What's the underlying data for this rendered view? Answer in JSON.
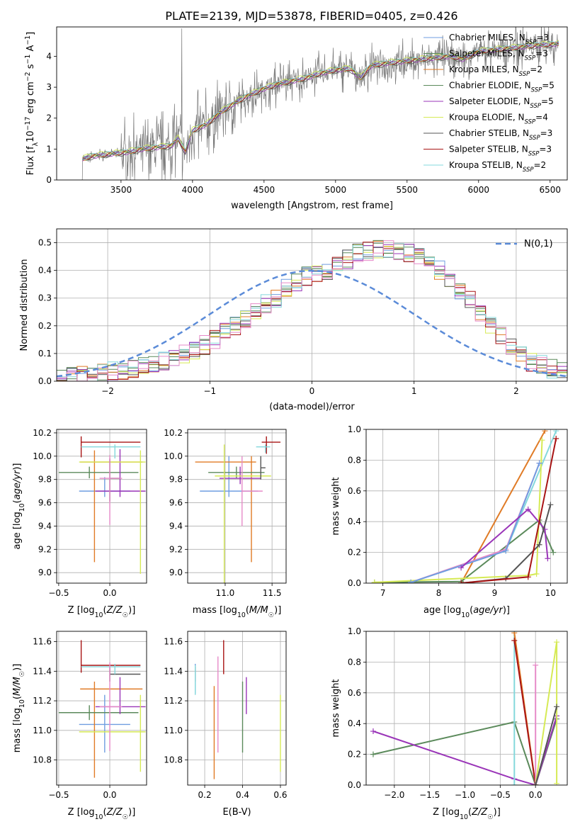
{
  "title": "PLATE=2139, MJD=53878, FIBERID=0405, z=0.426",
  "colors": {
    "blue": "#6f9ee0",
    "orange": "#e07b26",
    "green": "#5b8a5b",
    "purple": "#9a35b8",
    "yellow": "#d6ea55",
    "gray": "#555555",
    "red": "#a81414",
    "cyan": "#84d8dc",
    "pink": "#e68ac8",
    "dashed": "#5b8bd8"
  },
  "legend_spectrum": [
    {
      "name": "Chabrier MILES",
      "nssp": "3",
      "color": "#6f9ee0"
    },
    {
      "name": "Salpeter MILES",
      "nssp": "3",
      "color": "#5b8a5b"
    },
    {
      "name": "Kroupa MILES",
      "nssp": "2",
      "color": "#e07b26"
    },
    {
      "name": "Chabrier ELODIE",
      "nssp": "5",
      "color": "#5b8a5b"
    },
    {
      "name": "Salpeter ELODIE",
      "nssp": "5",
      "color": "#9a35b8"
    },
    {
      "name": "Kroupa ELODIE",
      "nssp": "4",
      "color": "#d6ea55"
    },
    {
      "name": "Chabrier STELIB",
      "nssp": "3",
      "color": "#555555"
    },
    {
      "name": "Salpeter STELIB",
      "nssp": "3",
      "color": "#a81414"
    },
    {
      "name": "Kroupa STELIB",
      "nssp": "2",
      "color": "#84d8dc"
    }
  ],
  "chart_data": [
    {
      "id": "spectrum",
      "type": "line",
      "xlabel": "wavelength [Angstrom, rest frame]",
      "ylabel_parts": [
        "Flux [f",
        "λ",
        "10",
        "−17",
        " erg cm",
        "−2",
        " s",
        "−1",
        " A",
        "−1",
        "]"
      ],
      "xlim": [
        3050,
        6620
      ],
      "ylim": [
        0,
        4.95
      ],
      "xticks": [
        3500,
        4000,
        4500,
        5000,
        5500,
        6000,
        6500
      ],
      "yticks": [
        0,
        1,
        2,
        3,
        4
      ],
      "model_x": [
        3220,
        3280,
        3350,
        3450,
        3550,
        3650,
        3750,
        3850,
        3900,
        3950,
        4000,
        4100,
        4200,
        4300,
        4400,
        4500,
        4600,
        4700,
        4800,
        4860,
        4900,
        5000,
        5100,
        5175,
        5250,
        5400,
        5600,
        5800,
        5890,
        6000,
        6200,
        6400,
        6560
      ],
      "model_y": [
        0.65,
        0.75,
        0.8,
        0.85,
        0.9,
        1.0,
        1.05,
        1.1,
        1.35,
        0.9,
        1.6,
        1.8,
        2.2,
        2.5,
        2.75,
        2.95,
        3.1,
        3.2,
        3.3,
        3.4,
        3.45,
        3.55,
        3.6,
        3.3,
        3.7,
        3.8,
        3.9,
        4.0,
        3.9,
        4.15,
        4.25,
        4.35,
        4.4
      ]
    },
    {
      "id": "residuals",
      "type": "histogram",
      "xlabel": "(data-model)/error",
      "ylabel": "Normed distribution",
      "xlim": [
        -2.5,
        2.5
      ],
      "ylim": [
        0,
        0.55
      ],
      "xticks": [
        -2,
        -1,
        0,
        1,
        2
      ],
      "yticks": [
        0.0,
        0.1,
        0.2,
        0.3,
        0.4,
        0.5
      ],
      "bin_start": -2.5,
      "bin_width": 0.1,
      "base_values": [
        0.01,
        0.015,
        0.02,
        0.025,
        0.03,
        0.035,
        0.04,
        0.045,
        0.05,
        0.06,
        0.07,
        0.08,
        0.1,
        0.11,
        0.13,
        0.15,
        0.18,
        0.2,
        0.22,
        0.26,
        0.28,
        0.3,
        0.34,
        0.36,
        0.38,
        0.39,
        0.4,
        0.42,
        0.44,
        0.46,
        0.47,
        0.48,
        0.48,
        0.47,
        0.46,
        0.45,
        0.43,
        0.4,
        0.37,
        0.33,
        0.29,
        0.25,
        0.2,
        0.16,
        0.12,
        0.09,
        0.07,
        0.06,
        0.045,
        0.035
      ],
      "gaussian_label": "N(0,1)"
    },
    {
      "id": "age_vs_Z",
      "type": "errorbar",
      "xlabel": "Z [log10(Z/Z☉)]",
      "ylabel": "age [log10(age/yr)]",
      "xlim": [
        -0.52,
        0.36
      ],
      "ylim": [
        8.91,
        10.23
      ],
      "xticks": [
        -0.5,
        0.0,
        0.5
      ],
      "yticks": [
        9.0,
        9.2,
        9.4,
        9.6,
        9.8,
        10.0,
        10.2
      ],
      "points": [
        {
          "x": -0.05,
          "y": 9.7,
          "xerr": [
            0.25,
            0.25
          ],
          "yerr": [
            0.05,
            0.12
          ],
          "color": "#6f9ee0"
        },
        {
          "x": -0.15,
          "y": 9.95,
          "xerr": [
            0.14,
            0.47
          ],
          "yerr": [
            0.86,
            0.1
          ],
          "color": "#e07b26"
        },
        {
          "x": -0.2,
          "y": 9.86,
          "xerr": [
            0.3,
            0.48
          ],
          "yerr": [
            0.05,
            0.05
          ],
          "color": "#5b8a5b"
        },
        {
          "x": 0.1,
          "y": 9.7,
          "xerr": [
            0.24,
            0.25
          ],
          "yerr": [
            0.05,
            0.36
          ],
          "color": "#9a35b8"
        },
        {
          "x": 0.3,
          "y": 9.95,
          "xerr": [
            0.6,
            0.05
          ],
          "yerr": [
            0.96,
            0.1
          ],
          "color": "#d6ea55"
        },
        {
          "x": 0.0,
          "y": 9.81,
          "xerr": [
            0.0,
            0.1
          ],
          "yerr": [
            0.2,
            0.17
          ],
          "color": "#555555"
        },
        {
          "x": -0.28,
          "y": 10.12,
          "xerr": [
            0.0,
            0.58
          ],
          "yerr": [
            0.13,
            0.05
          ],
          "color": "#a81414"
        },
        {
          "x": 0.05,
          "y": 10.08,
          "xerr": [
            0.33,
            0.25
          ],
          "yerr": [
            0.1,
            0.02
          ],
          "color": "#84d8dc"
        },
        {
          "x": 0.0,
          "y": 9.81,
          "xerr": [
            0.1,
            0.12
          ],
          "yerr": [
            0.4,
            0.2
          ],
          "color": "#e68ac8"
        }
      ]
    },
    {
      "id": "age_vs_mass",
      "type": "errorbar",
      "xlabel": "mass [log10(M/M☉)]",
      "ylabel": "",
      "xlim": [
        10.6,
        11.65
      ],
      "ylim": [
        8.91,
        10.23
      ],
      "xticks": [
        11.0,
        11.5
      ],
      "yticks": [
        9.0,
        9.2,
        9.4,
        9.6,
        9.8,
        10.0,
        10.2
      ],
      "points": [
        {
          "x": 11.04,
          "y": 9.7,
          "xerr": [
            0.31,
            0.31
          ],
          "yerr": [
            0.05,
            0.3
          ],
          "color": "#6f9ee0"
        },
        {
          "x": 11.28,
          "y": 9.95,
          "xerr": [
            0.6,
            0.05
          ],
          "yerr": [
            0.86,
            0.05
          ],
          "color": "#e07b26"
        },
        {
          "x": 11.12,
          "y": 9.86,
          "xerr": [
            0.3,
            0.3
          ],
          "yerr": [
            0.05,
            0.05
          ],
          "color": "#5b8a5b"
        },
        {
          "x": 11.16,
          "y": 9.81,
          "xerr": [
            0.22,
            0.22
          ],
          "yerr": [
            0.05,
            0.1
          ],
          "color": "#9a35b8"
        },
        {
          "x": 10.99,
          "y": 9.83,
          "xerr": [
            0.1,
            0.5
          ],
          "yerr": [
            0.96,
            0.27
          ],
          "color": "#d6ea55"
        },
        {
          "x": 11.38,
          "y": 9.9,
          "xerr": [
            0.0,
            0.05
          ],
          "yerr": [
            0.1,
            0.1
          ],
          "color": "#555555"
        },
        {
          "x": 11.44,
          "y": 10.12,
          "xerr": [
            0.05,
            0.15
          ],
          "yerr": [
            0.1,
            0.05
          ],
          "color": "#a81414"
        },
        {
          "x": 11.43,
          "y": 10.08,
          "xerr": [
            0.1,
            0.05
          ],
          "yerr": [
            0.05,
            0.02
          ],
          "color": "#84d8dc"
        },
        {
          "x": 11.18,
          "y": 9.7,
          "xerr": [
            0.0,
            0.22
          ],
          "yerr": [
            0.3,
            0.3
          ],
          "color": "#e68ac8"
        }
      ]
    },
    {
      "id": "weight_vs_age",
      "type": "line",
      "xlabel": "age [log10(age/yr)]",
      "ylabel": "mass weight",
      "xlim": [
        6.7,
        10.3
      ],
      "ylim": [
        0,
        1.0
      ],
      "xticks": [
        7,
        8,
        9,
        10
      ],
      "yticks": [
        0.0,
        0.2,
        0.4,
        0.6,
        0.8,
        1.0
      ],
      "series": [
        {
          "color": "#e07b26",
          "x": [
            8.4,
            9.9
          ],
          "y": [
            0.0,
            0.99
          ]
        },
        {
          "color": "#84d8dc",
          "x": [
            9.2,
            10.1
          ],
          "y": [
            0.21,
            0.99
          ]
        },
        {
          "color": "#5b8a5b",
          "x": [
            6.85,
            8.4,
            9.8,
            10.05
          ],
          "y": [
            0.005,
            0.01,
            0.41,
            0.2
          ]
        },
        {
          "color": "#d6ea55",
          "x": [
            6.85,
            9.6,
            9.75,
            9.85
          ],
          "y": [
            0.005,
            0.05,
            0.06,
            0.93
          ]
        },
        {
          "color": "#e68ac8",
          "x": [
            7.5,
            9.2,
            9.8
          ],
          "y": [
            0.005,
            0.22,
            0.78
          ]
        },
        {
          "color": "#6f9ee0",
          "x": [
            7.5,
            9.2,
            9.8
          ],
          "y": [
            0.005,
            0.21,
            0.78
          ]
        },
        {
          "color": "#9a35b8",
          "x": [
            8.4,
            9.6,
            9.9,
            9.95
          ],
          "y": [
            0.1,
            0.48,
            0.35,
            0.16
          ]
        },
        {
          "color": "#555555",
          "x": [
            8.4,
            9.2,
            9.8,
            10.0
          ],
          "y": [
            0.0,
            0.03,
            0.25,
            0.51
          ]
        },
        {
          "color": "#a81414",
          "x": [
            8.4,
            9.6,
            10.1
          ],
          "y": [
            0.0,
            0.04,
            0.94
          ]
        }
      ]
    },
    {
      "id": "mass_vs_Z",
      "type": "errorbar",
      "xlabel": "Z [log10(Z/Z☉)]",
      "ylabel": "mass [log10(M/M☉)]",
      "xlim": [
        -0.52,
        0.36
      ],
      "ylim": [
        10.63,
        11.67
      ],
      "xticks": [
        -0.5,
        0.0,
        0.5
      ],
      "yticks": [
        10.8,
        11.0,
        11.2,
        11.4,
        11.6
      ],
      "points": [
        {
          "x": -0.05,
          "y": 11.04,
          "xerr": [
            0.25,
            0.25
          ],
          "yerr": [
            0.19,
            0.2
          ],
          "color": "#6f9ee0"
        },
        {
          "x": -0.15,
          "y": 11.28,
          "xerr": [
            0.14,
            0.47
          ],
          "yerr": [
            0.6,
            0.05
          ],
          "color": "#e07b26"
        },
        {
          "x": -0.2,
          "y": 11.12,
          "xerr": [
            0.3,
            0.48
          ],
          "yerr": [
            0.05,
            0.05
          ],
          "color": "#5b8a5b"
        },
        {
          "x": 0.1,
          "y": 11.16,
          "xerr": [
            0.24,
            0.25
          ],
          "yerr": [
            0.05,
            0.2
          ],
          "color": "#9a35b8"
        },
        {
          "x": 0.3,
          "y": 10.99,
          "xerr": [
            0.6,
            0.05
          ],
          "yerr": [
            0.27,
            0.25
          ],
          "color": "#d6ea55"
        },
        {
          "x": 0.0,
          "y": 11.38,
          "xerr": [
            0.0,
            0.3
          ],
          "yerr": [
            0.05,
            0.05
          ],
          "color": "#555555"
        },
        {
          "x": -0.28,
          "y": 11.44,
          "xerr": [
            0.0,
            0.58
          ],
          "yerr": [
            0.05,
            0.17
          ],
          "color": "#a81414"
        },
        {
          "x": 0.05,
          "y": 11.43,
          "xerr": [
            0.33,
            0.25
          ],
          "yerr": [
            0.05,
            0.02
          ],
          "color": "#84d8dc"
        },
        {
          "x": 0.0,
          "y": 11.16,
          "xerr": [
            0.1,
            0.12
          ],
          "yerr": [
            0.3,
            0.3
          ],
          "color": "#e68ac8"
        }
      ]
    },
    {
      "id": "mass_vs_ebv",
      "type": "errorbar",
      "xlabel": "E(B-V)",
      "ylabel": "",
      "xlim": [
        0.11,
        0.63
      ],
      "ylim": [
        10.63,
        11.67
      ],
      "xticks": [
        0.2,
        0.4,
        0.6
      ],
      "yticks": [
        10.8,
        11.0,
        11.2,
        11.4,
        11.6
      ],
      "points": [
        {
          "x": 0.15,
          "y": 11.35,
          "xerr": [
            0,
            0
          ],
          "yerr": [
            0.1,
            0.1
          ],
          "color": "#6f9ee0"
        },
        {
          "x": 0.25,
          "y": 11.0,
          "xerr": [
            0,
            0
          ],
          "yerr": [
            0.33,
            0.3
          ],
          "color": "#e07b26"
        },
        {
          "x": 0.4,
          "y": 11.08,
          "xerr": [
            0,
            0
          ],
          "yerr": [
            0.23,
            0.25
          ],
          "color": "#5b8a5b"
        },
        {
          "x": 0.42,
          "y": 11.16,
          "xerr": [
            0,
            0
          ],
          "yerr": [
            0.05,
            0.2
          ],
          "color": "#9a35b8"
        },
        {
          "x": 0.6,
          "y": 10.99,
          "xerr": [
            0,
            0
          ],
          "yerr": [
            0.27,
            0.25
          ],
          "color": "#d6ea55"
        },
        {
          "x": 0.15,
          "y": 11.38,
          "xerr": [
            0,
            0
          ],
          "yerr": [
            0.05,
            0.05
          ],
          "color": "#555555"
        },
        {
          "x": 0.3,
          "y": 11.48,
          "xerr": [
            0,
            0
          ],
          "yerr": [
            0.1,
            0.13
          ],
          "color": "#a81414"
        },
        {
          "x": 0.15,
          "y": 11.34,
          "xerr": [
            0,
            0
          ],
          "yerr": [
            0.1,
            0.1
          ],
          "color": "#84d8dc"
        },
        {
          "x": 0.27,
          "y": 11.35,
          "xerr": [
            0,
            0
          ],
          "yerr": [
            0.5,
            0.15
          ],
          "color": "#e68ac8"
        }
      ]
    },
    {
      "id": "weight_vs_Z",
      "type": "line",
      "xlabel": "Z [log10(Z/Z☉)]",
      "ylabel": "mass weight",
      "xlim": [
        -2.4,
        0.45
      ],
      "ylim": [
        0,
        1.0
      ],
      "xticks": [
        -2.0,
        -1.5,
        -1.0,
        -0.5,
        0.0
      ],
      "yticks": [
        0.0,
        0.2,
        0.4,
        0.6,
        0.8,
        1.0
      ],
      "series": [
        {
          "color": "#5b8a5b",
          "x": [
            -2.3,
            -0.3,
            0.0,
            0.3
          ],
          "y": [
            0.2,
            0.41,
            0.0,
            0.43
          ]
        },
        {
          "color": "#9a35b8",
          "x": [
            -2.3,
            -0.3,
            0.0,
            0.3
          ],
          "y": [
            0.35,
            0.04,
            0.0,
            0.45
          ]
        },
        {
          "color": "#84d8dc",
          "x": [
            -0.3,
            -0.3
          ],
          "y": [
            0.0,
            1.0
          ]
        },
        {
          "color": "#e07b26",
          "x": [
            -0.3,
            0.0
          ],
          "y": [
            0.99,
            0.0
          ]
        },
        {
          "color": "#a81414",
          "x": [
            -0.3,
            0.0
          ],
          "y": [
            0.94,
            0.0
          ]
        },
        {
          "color": "#e68ac8",
          "x": [
            0.0,
            0.0
          ],
          "y": [
            0.0,
            0.78
          ]
        },
        {
          "color": "#d6ea55",
          "x": [
            0.0,
            0.3,
            0.3
          ],
          "y": [
            0.0,
            0.93,
            0.01
          ]
        },
        {
          "color": "#555555",
          "x": [
            0.0,
            0.3
          ],
          "y": [
            0.0,
            0.51
          ]
        }
      ]
    }
  ]
}
